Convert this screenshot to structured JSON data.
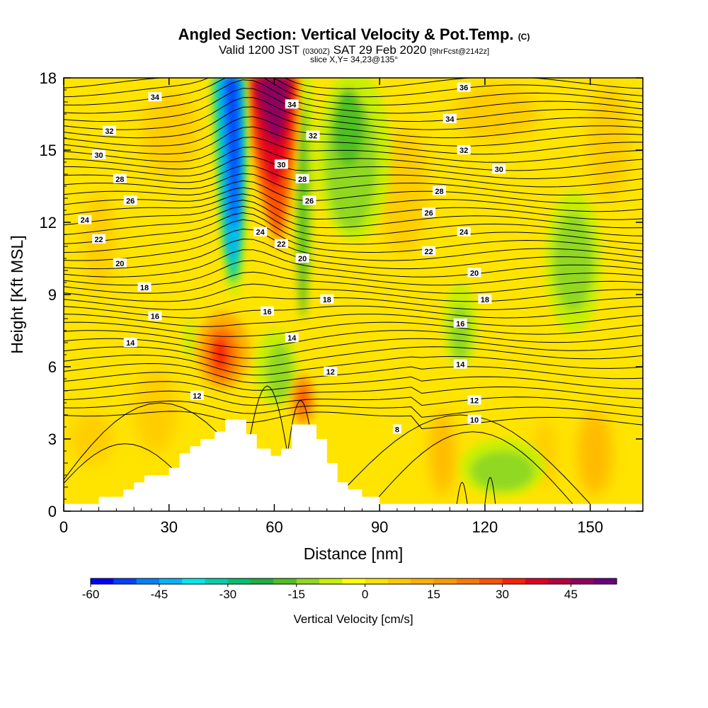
{
  "title": {
    "main": "Angled Section: Vertical Velocity & Pot.Temp.",
    "copyright": "(C)",
    "valid": "Valid 1200 JST",
    "zulu": "(0300Z)",
    "date": "SAT 29 Feb 2020",
    "fcst": "[9hrFcst@2142z]",
    "slice": "slice X,Y= 34,23@135°"
  },
  "chart_data": {
    "type": "heatmap",
    "xlabel": "Distance [nm]",
    "ylabel": "Height [Kft MSL]",
    "xlim": [
      0,
      165
    ],
    "ylim": [
      0,
      18
    ],
    "x_ticks": [
      "0",
      "30",
      "60",
      "90",
      "120",
      "150"
    ],
    "y_ticks": [
      "0",
      "3",
      "6",
      "9",
      "12",
      "15",
      "18"
    ],
    "colorbar": {
      "title": "Vertical Velocity [cm/s]",
      "range": [
        -60,
        55
      ],
      "tick_labels": [
        "-60",
        "-45",
        "-30",
        "-15",
        "0",
        "15",
        "30",
        "45"
      ],
      "colors": [
        "#0000ff",
        "#0040ff",
        "#0080ff",
        "#00b4ff",
        "#00e8f0",
        "#00d0b0",
        "#00c070",
        "#20b040",
        "#50c020",
        "#90d820",
        "#c8f000",
        "#ffff00",
        "#ffe000",
        "#ffc800",
        "#ffb000",
        "#ff9800",
        "#ff7800",
        "#ff5000",
        "#ff2000",
        "#e00020",
        "#b80040",
        "#900060",
        "#6a0080"
      ]
    },
    "terrain_kft": [
      [
        0,
        0.3
      ],
      [
        10,
        0.3
      ],
      [
        10,
        0.6
      ],
      [
        17,
        0.6
      ],
      [
        17,
        0.9
      ],
      [
        20,
        0.9
      ],
      [
        20,
        1.2
      ],
      [
        23,
        1.2
      ],
      [
        23,
        1.5
      ],
      [
        30,
        1.5
      ],
      [
        30,
        1.8
      ],
      [
        33,
        1.8
      ],
      [
        33,
        2.4
      ],
      [
        36,
        2.4
      ],
      [
        36,
        2.7
      ],
      [
        39,
        2.7
      ],
      [
        39,
        3.0
      ],
      [
        43,
        3.0
      ],
      [
        43,
        3.3
      ],
      [
        46,
        3.3
      ],
      [
        46,
        3.8
      ],
      [
        52,
        3.8
      ],
      [
        52,
        3.2
      ],
      [
        55,
        3.2
      ],
      [
        55,
        2.6
      ],
      [
        59,
        2.6
      ],
      [
        59,
        2.3
      ],
      [
        62,
        2.3
      ],
      [
        62,
        2.6
      ],
      [
        65,
        2.6
      ],
      [
        65,
        3.6
      ],
      [
        72,
        3.6
      ],
      [
        72,
        3.0
      ],
      [
        75,
        3.0
      ],
      [
        75,
        2.0
      ],
      [
        78,
        2.0
      ],
      [
        78,
        1.2
      ],
      [
        81,
        1.2
      ],
      [
        81,
        0.9
      ],
      [
        85,
        0.9
      ],
      [
        85,
        0.6
      ],
      [
        90,
        0.6
      ],
      [
        90,
        0.3
      ],
      [
        165,
        0.3
      ]
    ],
    "theta_contours": [
      {
        "label": "34",
        "pos": [
          26,
          17.2
        ]
      },
      {
        "label": "32",
        "pos": [
          13,
          15.8
        ]
      },
      {
        "label": "30",
        "pos": [
          10,
          14.8
        ]
      },
      {
        "label": "28",
        "pos": [
          16,
          13.8
        ]
      },
      {
        "label": "26",
        "pos": [
          19,
          12.9
        ]
      },
      {
        "label": "24",
        "pos": [
          6,
          12.1
        ]
      },
      {
        "label": "22",
        "pos": [
          10,
          11.3
        ]
      },
      {
        "label": "20",
        "pos": [
          16,
          10.3
        ]
      },
      {
        "label": "18",
        "pos": [
          23,
          9.3
        ]
      },
      {
        "label": "16",
        "pos": [
          26,
          8.1
        ]
      },
      {
        "label": "14",
        "pos": [
          19,
          7.0
        ]
      },
      {
        "label": "12",
        "pos": [
          38,
          4.8
        ]
      },
      {
        "label": "34",
        "pos": [
          65,
          16.9
        ]
      },
      {
        "label": "32",
        "pos": [
          71,
          15.6
        ]
      },
      {
        "label": "30",
        "pos": [
          62,
          14.4
        ]
      },
      {
        "label": "28",
        "pos": [
          68,
          13.8
        ]
      },
      {
        "label": "26",
        "pos": [
          70,
          12.9
        ]
      },
      {
        "label": "24",
        "pos": [
          56,
          11.6
        ]
      },
      {
        "label": "22",
        "pos": [
          62,
          11.1
        ]
      },
      {
        "label": "20",
        "pos": [
          68,
          10.5
        ]
      },
      {
        "label": "18",
        "pos": [
          75,
          8.8
        ]
      },
      {
        "label": "16",
        "pos": [
          58,
          8.3
        ]
      },
      {
        "label": "14",
        "pos": [
          65,
          7.2
        ]
      },
      {
        "label": "12",
        "pos": [
          76,
          5.8
        ]
      },
      {
        "label": "36",
        "pos": [
          114,
          17.6
        ]
      },
      {
        "label": "34",
        "pos": [
          110,
          16.3
        ]
      },
      {
        "label": "32",
        "pos": [
          114,
          15.0
        ]
      },
      {
        "label": "30",
        "pos": [
          124,
          14.2
        ]
      },
      {
        "label": "28",
        "pos": [
          107,
          13.3
        ]
      },
      {
        "label": "26",
        "pos": [
          104,
          12.4
        ]
      },
      {
        "label": "24",
        "pos": [
          114,
          11.6
        ]
      },
      {
        "label": "22",
        "pos": [
          104,
          10.8
        ]
      },
      {
        "label": "20",
        "pos": [
          117,
          9.9
        ]
      },
      {
        "label": "18",
        "pos": [
          120,
          8.8
        ]
      },
      {
        "label": "16",
        "pos": [
          113,
          7.8
        ]
      },
      {
        "label": "14",
        "pos": [
          113,
          6.1
        ]
      },
      {
        "label": "12",
        "pos": [
          117,
          4.6
        ]
      },
      {
        "label": "10",
        "pos": [
          117,
          3.8
        ]
      },
      {
        "label": "8",
        "pos": [
          95,
          3.4
        ]
      }
    ],
    "velocity_regions": [
      {
        "kind": "downdraft_core",
        "value": -55,
        "x": [
          46,
          53
        ],
        "y": [
          10,
          18
        ]
      },
      {
        "kind": "updraft_core",
        "value": 50,
        "x": [
          55,
          66
        ],
        "y": [
          14,
          18
        ]
      },
      {
        "kind": "downdraft_band",
        "value": -15,
        "x": [
          78,
          92
        ],
        "y": [
          12,
          18
        ]
      },
      {
        "kind": "downdraft_cell",
        "value": -10,
        "x": [
          143,
          155
        ],
        "y": [
          7,
          13
        ]
      },
      {
        "kind": "downdraft_cell",
        "value": -10,
        "x": [
          110,
          120
        ],
        "y": [
          6,
          10
        ]
      },
      {
        "kind": "downdraft_area",
        "value": -8,
        "x": [
          115,
          145
        ],
        "y": [
          0.5,
          3.5
        ]
      },
      {
        "kind": "updraft_cell",
        "value": 25,
        "x": [
          42,
          50
        ],
        "y": [
          5.5,
          7.5
        ]
      },
      {
        "kind": "updraft_cell",
        "value": 15,
        "x": [
          66,
          73
        ],
        "y": [
          3.8,
          5.5
        ]
      }
    ]
  }
}
